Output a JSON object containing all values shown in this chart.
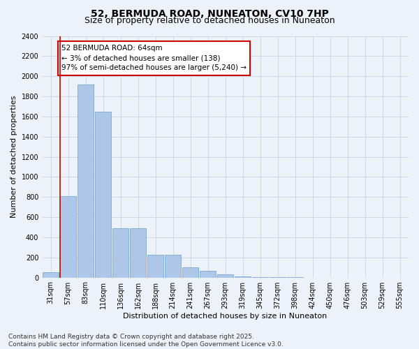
{
  "title": "52, BERMUDA ROAD, NUNEATON, CV10 7HP",
  "subtitle": "Size of property relative to detached houses in Nuneaton",
  "xlabel": "Distribution of detached houses by size in Nuneaton",
  "ylabel": "Number of detached properties",
  "categories": [
    "31sqm",
    "57sqm",
    "83sqm",
    "110sqm",
    "136sqm",
    "162sqm",
    "188sqm",
    "214sqm",
    "241sqm",
    "267sqm",
    "293sqm",
    "319sqm",
    "345sqm",
    "372sqm",
    "398sqm",
    "424sqm",
    "450sqm",
    "476sqm",
    "503sqm",
    "529sqm",
    "555sqm"
  ],
  "values": [
    55,
    810,
    1920,
    1650,
    490,
    490,
    225,
    225,
    100,
    65,
    30,
    10,
    4,
    2,
    1,
    0,
    0,
    0,
    0,
    0,
    0
  ],
  "bar_color": "#aec6e8",
  "bar_edge_color": "#6a9fd0",
  "grid_color": "#c8d4e8",
  "bg_color": "#edf2f8",
  "annotation_box_color": "#cc0000",
  "property_line_color": "#cc0000",
  "annotation_text": "52 BERMUDA ROAD: 64sqm\n← 3% of detached houses are smaller (138)\n97% of semi-detached houses are larger (5,240) →",
  "ylim": [
    0,
    2400
  ],
  "yticks": [
    0,
    200,
    400,
    600,
    800,
    1000,
    1200,
    1400,
    1600,
    1800,
    2000,
    2200,
    2400
  ],
  "footer": "Contains HM Land Registry data © Crown copyright and database right 2025.\nContains public sector information licensed under the Open Government Licence v3.0.",
  "title_fontsize": 10,
  "subtitle_fontsize": 9,
  "axis_label_fontsize": 8,
  "tick_fontsize": 7,
  "annotation_fontsize": 7.5,
  "footer_fontsize": 6.5
}
